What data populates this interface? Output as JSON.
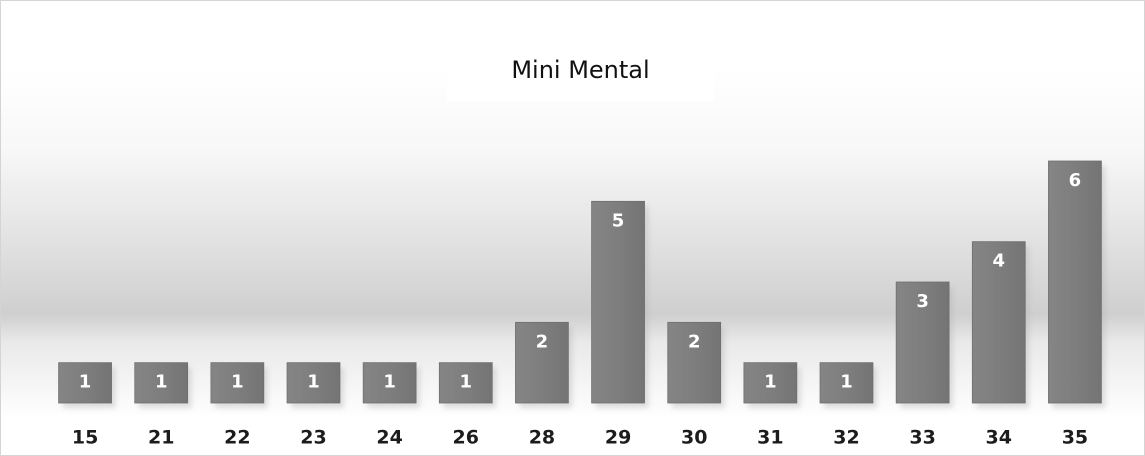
{
  "chart_data": {
    "type": "bar",
    "title": "Mini Mental",
    "categories": [
      "15",
      "21",
      "22",
      "23",
      "24",
      "26",
      "28",
      "29",
      "30",
      "31",
      "32",
      "33",
      "34",
      "35"
    ],
    "values": [
      1,
      1,
      1,
      1,
      1,
      1,
      2,
      5,
      2,
      1,
      1,
      3,
      4,
      6
    ],
    "xlabel": "",
    "ylabel": "",
    "ylim": [
      0,
      6
    ],
    "grid": false,
    "legend": "none",
    "data_labels": true,
    "bar_color": "#808080",
    "label_color": "#ffffff"
  }
}
